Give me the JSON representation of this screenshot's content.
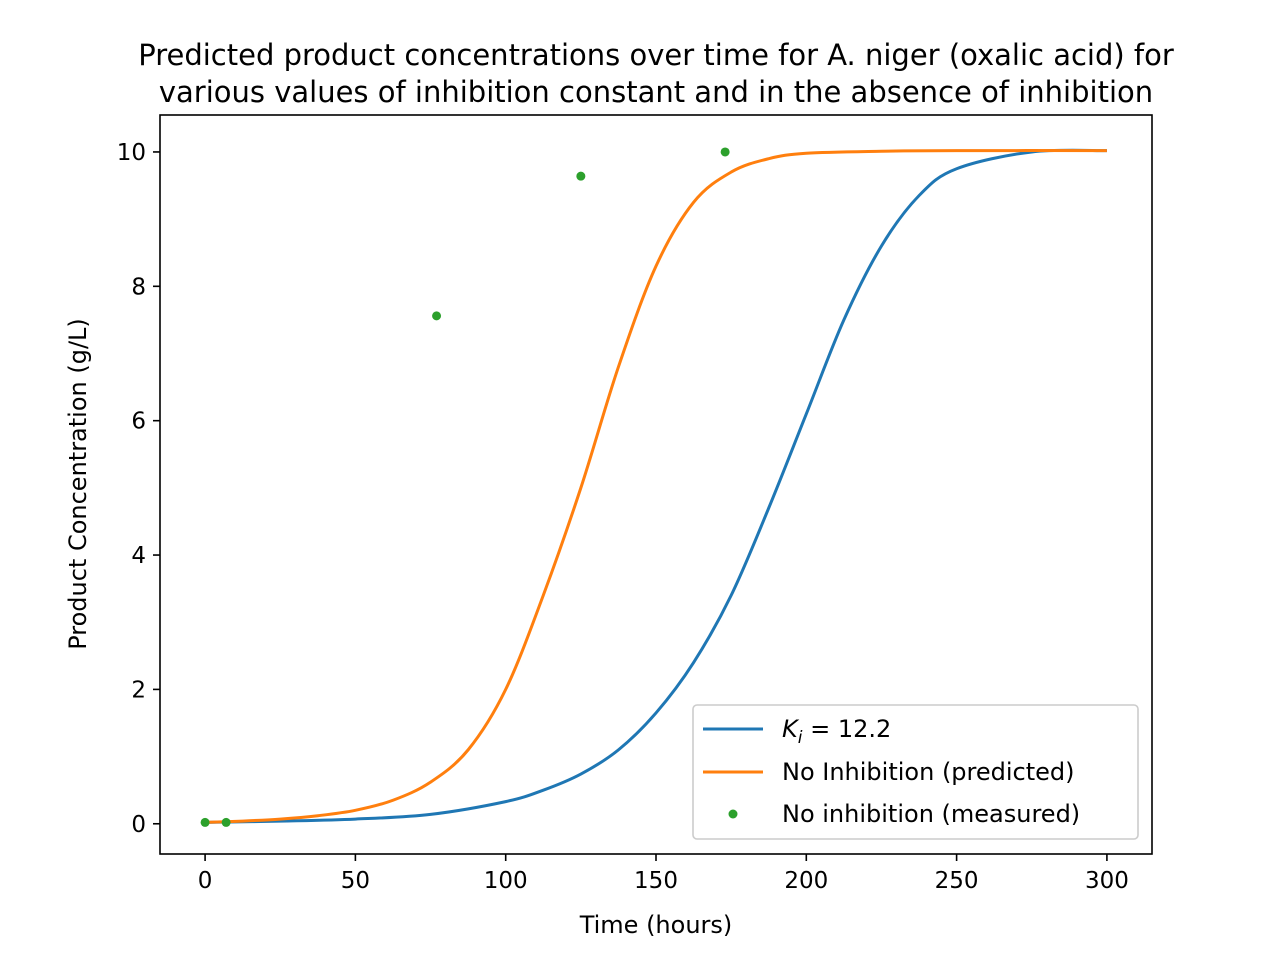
{
  "chart_data": {
    "type": "line",
    "title": [
      "Predicted product concentrations over time for A. niger (oxalic acid) for",
      "various values of inhibition constant and in the absence of inhibition"
    ],
    "xlabel": "Time (hours)",
    "ylabel": "Product Concentration (g/L)",
    "xlim": [
      -15,
      315
    ],
    "ylim": [
      -0.45,
      10.55
    ],
    "xticks": [
      0,
      50,
      100,
      150,
      200,
      250,
      300
    ],
    "yticks": [
      0,
      2,
      4,
      6,
      8,
      10
    ],
    "legend_position": "lower-right",
    "series": [
      {
        "name_prefix": "K",
        "name_subscript": "i",
        "name_suffix": " = 12.2",
        "kind": "line",
        "color": "#1f77b4",
        "x": [
          0,
          25,
          50,
          75,
          100,
          112.5,
          125,
          137.5,
          150,
          162.5,
          175,
          187.5,
          200,
          212.5,
          225,
          237.5,
          250,
          275,
          300
        ],
        "y": [
          0.02,
          0.04,
          0.07,
          0.14,
          0.33,
          0.5,
          0.74,
          1.1,
          1.65,
          2.4,
          3.4,
          4.7,
          6.1,
          7.5,
          8.6,
          9.35,
          9.75,
          10.0,
          10.02
        ]
      },
      {
        "name": "No Inhibition (predicted)",
        "kind": "line",
        "color": "#ff7f0e",
        "x": [
          0,
          12.5,
          25,
          37.5,
          50,
          62.5,
          75,
          87.5,
          100,
          112.5,
          125,
          137.5,
          150,
          162.5,
          175,
          187.5,
          200,
          225,
          250,
          300
        ],
        "y": [
          0.02,
          0.04,
          0.07,
          0.12,
          0.2,
          0.35,
          0.62,
          1.1,
          2.0,
          3.4,
          5.0,
          6.8,
          8.3,
          9.25,
          9.7,
          9.9,
          9.98,
          10.01,
          10.02,
          10.02
        ]
      },
      {
        "name": "No inhibition (measured)",
        "kind": "scatter",
        "color": "#2ca02c",
        "x": [
          0,
          7,
          77,
          125,
          173
        ],
        "y": [
          0.02,
          0.02,
          7.56,
          9.64,
          10.0
        ]
      }
    ]
  }
}
